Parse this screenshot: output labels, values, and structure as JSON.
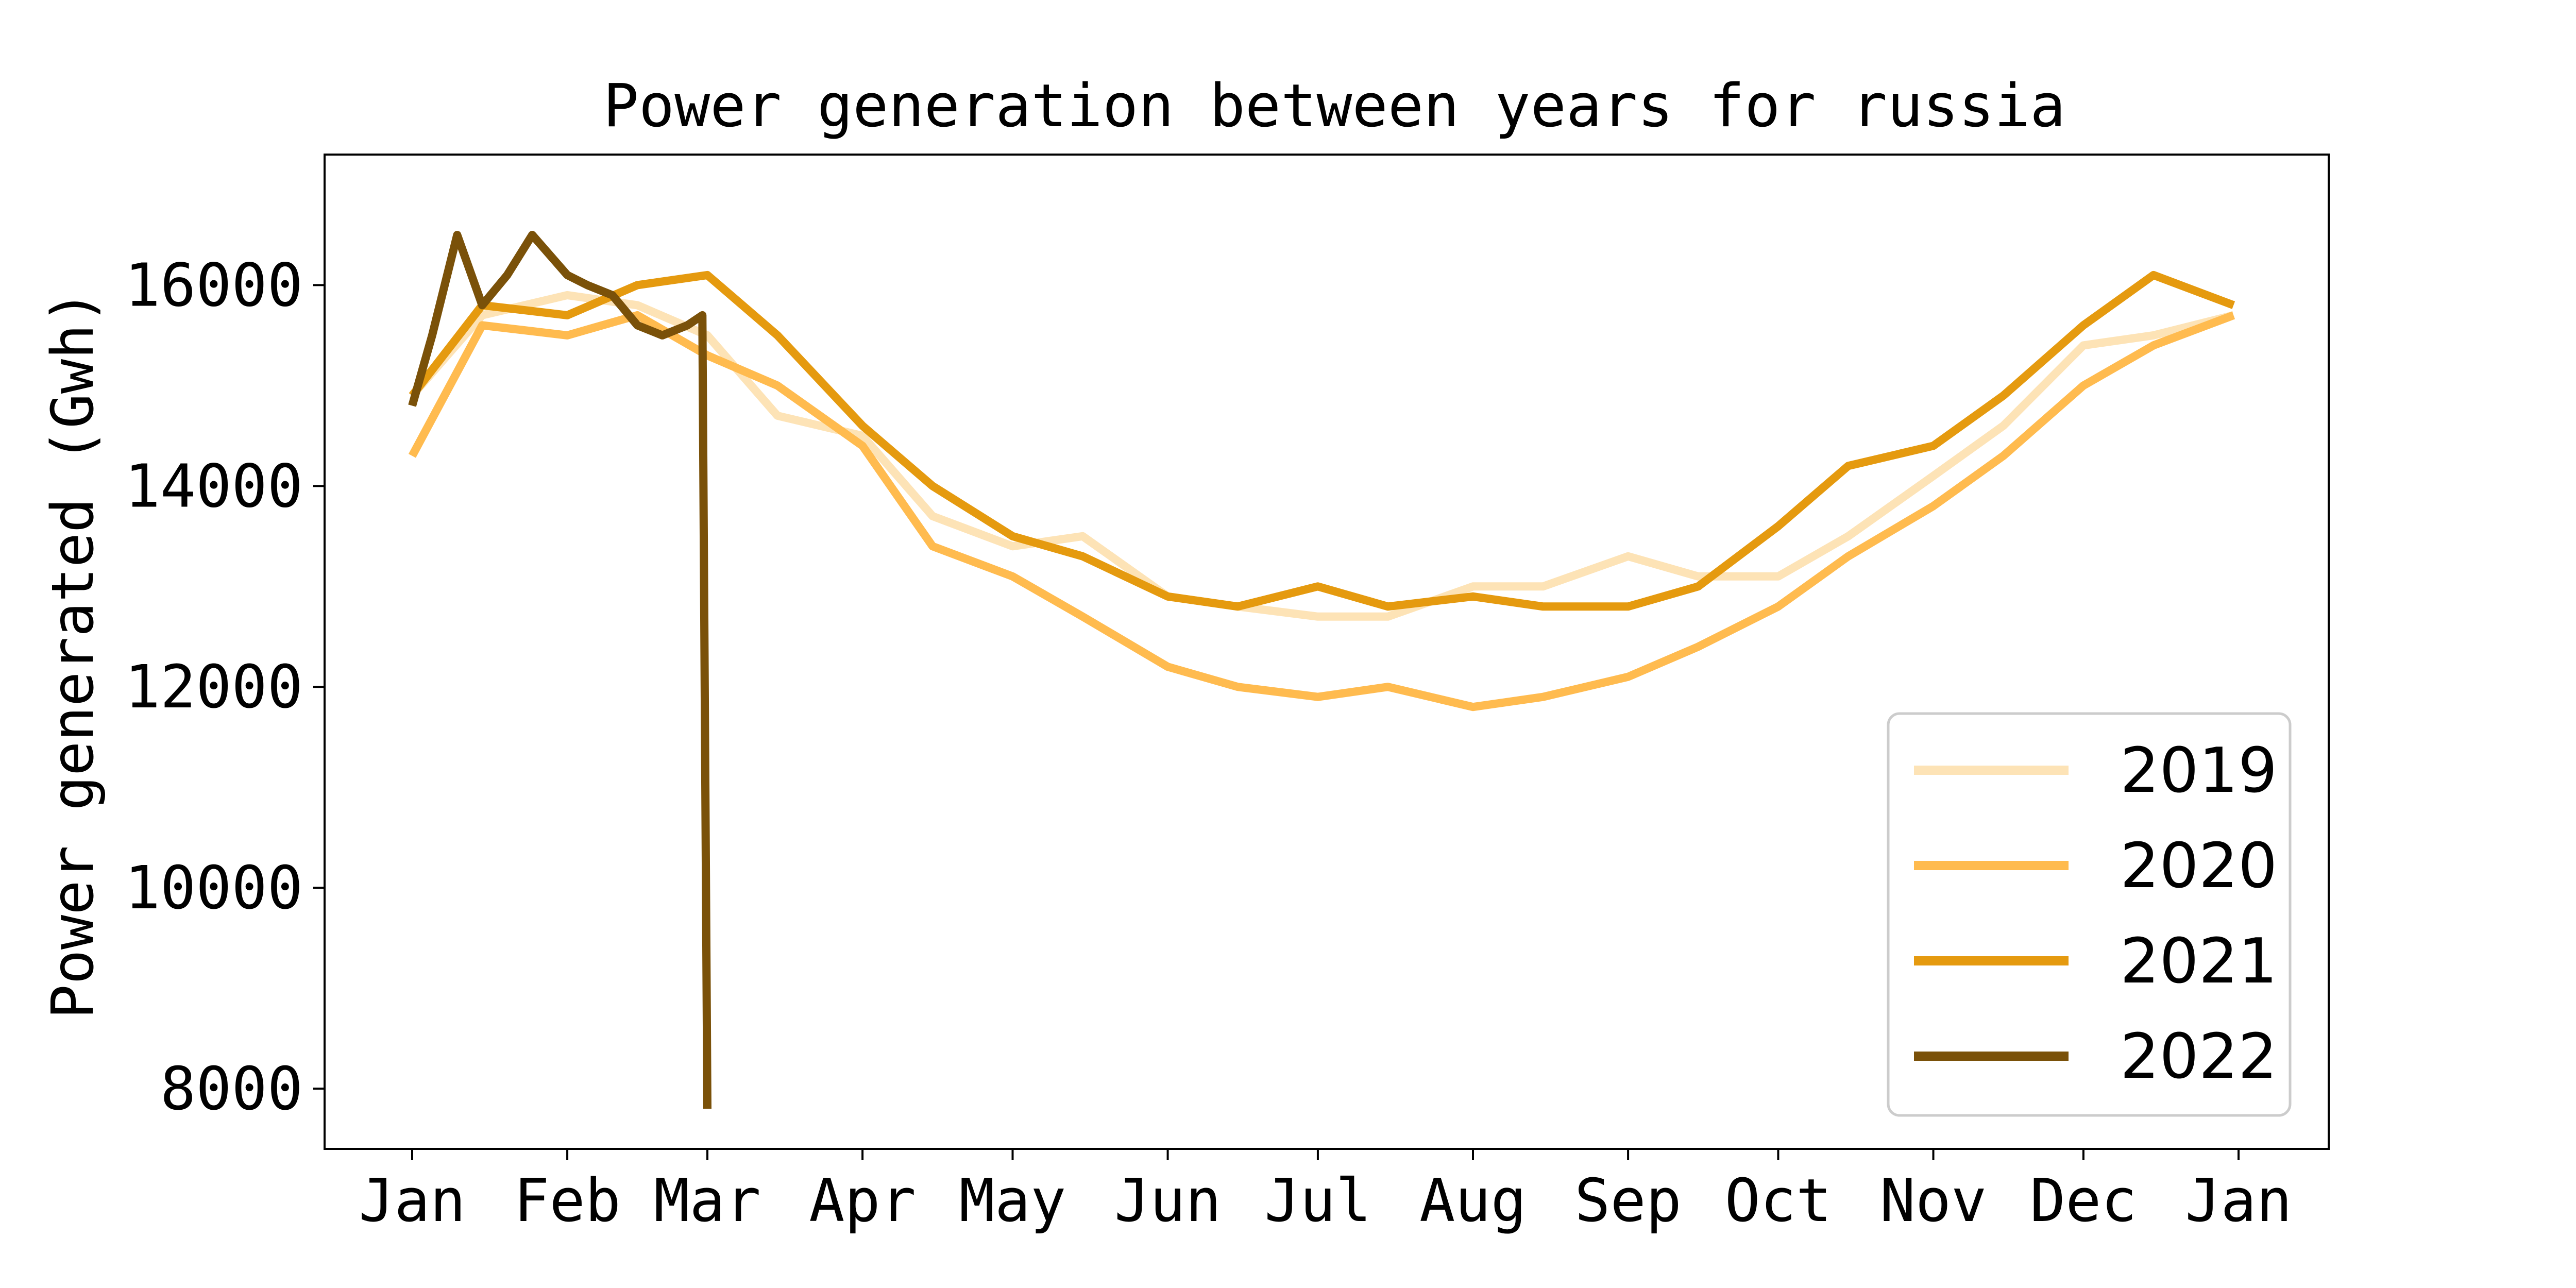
{
  "chart_data": {
    "type": "line",
    "title": "Power generation between years for russia",
    "xlabel": "",
    "ylabel": "Power generated (Gwh)",
    "x_ticks": [
      "Jan",
      "Feb",
      "Mar",
      "Apr",
      "May",
      "Jun",
      "Jul",
      "Aug",
      "Sep",
      "Oct",
      "Nov",
      "Dec",
      "Jan"
    ],
    "y_ticks": [
      8000,
      10000,
      12000,
      14000,
      16000
    ],
    "ylim": [
      7400,
      17300
    ],
    "grid": false,
    "legend_position": "bottom-right",
    "series": [
      {
        "name": "2019",
        "color": "#fde3b6",
        "x": [
          "2019-01-01",
          "2019-01-15",
          "2019-02-01",
          "2019-02-15",
          "2019-03-01",
          "2019-03-15",
          "2019-04-01",
          "2019-04-15",
          "2019-05-01",
          "2019-05-15",
          "2019-06-01",
          "2019-06-15",
          "2019-07-01",
          "2019-07-15",
          "2019-08-01",
          "2019-08-15",
          "2019-09-01",
          "2019-09-15",
          "2019-10-01",
          "2019-10-15",
          "2019-11-01",
          "2019-11-15",
          "2019-12-01",
          "2019-12-15",
          "2019-12-31"
        ],
        "values": [
          14900,
          15700,
          15900,
          15800,
          15500,
          14700,
          14500,
          13700,
          13400,
          13500,
          12900,
          12800,
          12700,
          12700,
          13000,
          13000,
          13300,
          13100,
          13100,
          13500,
          14100,
          14600,
          15400,
          15500,
          15700
        ]
      },
      {
        "name": "2020",
        "color": "#ffbb4f",
        "x": [
          "2019-01-01",
          "2019-01-15",
          "2019-02-01",
          "2019-02-15",
          "2019-03-01",
          "2019-03-15",
          "2019-04-01",
          "2019-04-15",
          "2019-05-01",
          "2019-05-15",
          "2019-06-01",
          "2019-06-15",
          "2019-07-01",
          "2019-07-15",
          "2019-08-01",
          "2019-08-15",
          "2019-09-01",
          "2019-09-15",
          "2019-10-01",
          "2019-10-15",
          "2019-11-01",
          "2019-11-15",
          "2019-12-01",
          "2019-12-15",
          "2019-12-31"
        ],
        "values": [
          14300,
          15600,
          15500,
          15700,
          15300,
          15000,
          14400,
          13400,
          13100,
          12700,
          12200,
          12000,
          11900,
          12000,
          11800,
          11900,
          12100,
          12400,
          12800,
          13300,
          13800,
          14300,
          15000,
          15400,
          15700
        ]
      },
      {
        "name": "2021",
        "color": "#e59a0f",
        "x": [
          "2019-01-01",
          "2019-01-15",
          "2019-02-01",
          "2019-02-15",
          "2019-03-01",
          "2019-03-15",
          "2019-04-01",
          "2019-04-15",
          "2019-05-01",
          "2019-05-15",
          "2019-06-01",
          "2019-06-15",
          "2019-07-01",
          "2019-07-15",
          "2019-08-01",
          "2019-08-15",
          "2019-09-01",
          "2019-09-15",
          "2019-10-01",
          "2019-10-15",
          "2019-11-01",
          "2019-11-15",
          "2019-12-01",
          "2019-12-15",
          "2019-12-31"
        ],
        "values": [
          14900,
          15800,
          15700,
          16000,
          16100,
          15500,
          14600,
          14000,
          13500,
          13300,
          12900,
          12800,
          13000,
          12800,
          12900,
          12800,
          12800,
          13000,
          13600,
          14200,
          14400,
          14900,
          15600,
          16100,
          15800
        ]
      },
      {
        "name": "2022",
        "color": "#7a5109",
        "x": [
          "2019-01-01",
          "2019-01-05",
          "2019-01-10",
          "2019-01-15",
          "2019-01-20",
          "2019-01-25",
          "2019-02-01",
          "2019-02-05",
          "2019-02-10",
          "2019-02-15",
          "2019-02-20",
          "2019-02-25",
          "2019-02-28",
          "2019-03-01"
        ],
        "values": [
          14800,
          15500,
          16500,
          15800,
          16100,
          16500,
          16100,
          16000,
          15900,
          15600,
          15500,
          15600,
          15700,
          7800
        ]
      }
    ]
  }
}
